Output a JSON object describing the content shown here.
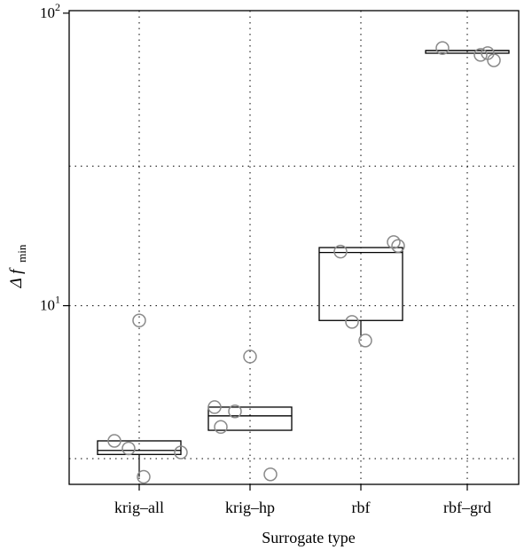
{
  "chart_data": {
    "type": "box",
    "title": "",
    "xlabel": "Surrogate type",
    "ylabel": {
      "main": "Δ f",
      "subscript": "min"
    },
    "y_scale": "log",
    "y_ticks": [
      {
        "value": 10,
        "base": "10",
        "exp": "1"
      },
      {
        "value": 100,
        "base": "10",
        "exp": "2"
      }
    ],
    "ylim": [
      2.45,
      102
    ],
    "grid": true,
    "categories": [
      "krig–all",
      "krig–hp",
      "rbf",
      "rbf–grd"
    ],
    "boxes": [
      {
        "category": "krig–all",
        "whisker_low": 2.6,
        "q1": 3.1,
        "median": 3.2,
        "q3": 3.45,
        "whisker_high": 3.45
      },
      {
        "category": "krig–hp",
        "whisker_low": 3.75,
        "q1": 3.75,
        "median": 4.2,
        "q3": 4.5,
        "whisker_high": 4.5
      },
      {
        "category": "rbf",
        "whisker_low": 7.8,
        "q1": 8.9,
        "median": 15.2,
        "q3": 15.8,
        "whisker_high": 15.8
      },
      {
        "category": "rbf–grd",
        "whisker_low": 73,
        "q1": 73,
        "median": 74.5,
        "q3": 74.5,
        "whisker_high": 74.5
      }
    ],
    "points": [
      {
        "category": "krig–all",
        "offset": -0.28,
        "y": 3.45
      },
      {
        "category": "krig–all",
        "offset": -0.12,
        "y": 3.25
      },
      {
        "category": "krig–all",
        "offset": 0.0,
        "y": 8.9
      },
      {
        "category": "krig–all",
        "offset": 0.05,
        "y": 2.6
      },
      {
        "category": "krig–all",
        "offset": 0.47,
        "y": 3.15
      },
      {
        "category": "krig–hp",
        "offset": -0.4,
        "y": 4.5
      },
      {
        "category": "krig–hp",
        "offset": -0.33,
        "y": 3.85
      },
      {
        "category": "krig–hp",
        "offset": -0.17,
        "y": 4.35
      },
      {
        "category": "krig–hp",
        "offset": 0.0,
        "y": 6.7
      },
      {
        "category": "krig–hp",
        "offset": 0.23,
        "y": 2.65
      },
      {
        "category": "rbf",
        "offset": -0.23,
        "y": 15.3
      },
      {
        "category": "rbf",
        "offset": -0.1,
        "y": 8.8
      },
      {
        "category": "rbf",
        "offset": 0.05,
        "y": 7.6
      },
      {
        "category": "rbf",
        "offset": 0.37,
        "y": 16.5
      },
      {
        "category": "rbf",
        "offset": 0.42,
        "y": 16.0
      },
      {
        "category": "rbf–grd",
        "offset": -0.28,
        "y": 76
      },
      {
        "category": "rbf–grd",
        "offset": 0.15,
        "y": 72
      },
      {
        "category": "rbf–grd",
        "offset": 0.23,
        "y": 73
      },
      {
        "category": "rbf–grd",
        "offset": 0.3,
        "y": 69
      }
    ],
    "box_color": "#000000",
    "point_color": "#8a8a8a"
  }
}
